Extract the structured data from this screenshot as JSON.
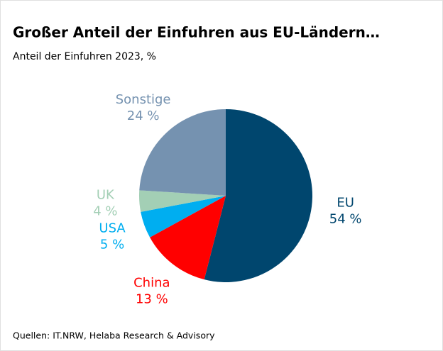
{
  "chart_data": {
    "type": "pie",
    "title": "Großer Anteil der Einfuhren aus EU-Ländern…",
    "subtitle": "Anteil der Einfuhren 2023, %",
    "source": "Quellen: IT.NRW, Helaba Research & Advisory",
    "categories": [
      "EU",
      "China",
      "USA",
      "UK",
      "Sonstige"
    ],
    "values": [
      54,
      13,
      5,
      4,
      24
    ],
    "value_labels": [
      "54 %",
      "13 %",
      "5 %",
      "4 %",
      "24 %"
    ],
    "colors": [
      "#00466e",
      "#ff0000",
      "#00aef0",
      "#a3cfb5",
      "#7592b0"
    ]
  }
}
